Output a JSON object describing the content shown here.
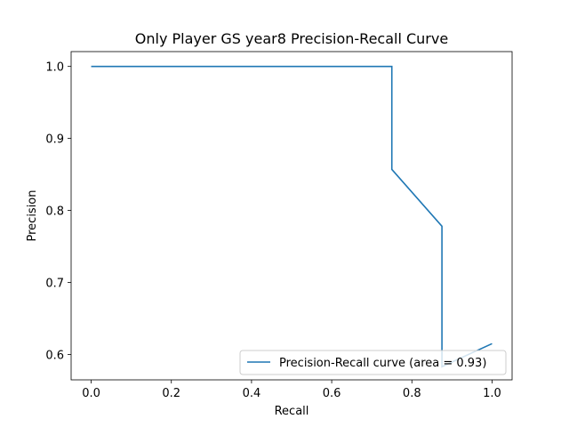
{
  "chart_data": {
    "type": "line",
    "title": "Only Player GS year8 Precision-Recall Curve",
    "xlabel": "Recall",
    "ylabel": "Precision",
    "xlim": [
      -0.05,
      1.05
    ],
    "ylim": [
      0.5647,
      1.0206
    ],
    "xticks": [
      0.0,
      0.2,
      0.4,
      0.6,
      0.8,
      1.0
    ],
    "xtick_labels": [
      "0.0",
      "0.2",
      "0.4",
      "0.6",
      "0.8",
      "1.0"
    ],
    "yticks": [
      0.6,
      0.7,
      0.8,
      0.9,
      1.0
    ],
    "ytick_labels": [
      "0.6",
      "0.7",
      "0.8",
      "0.9",
      "1.0"
    ],
    "grid": false,
    "legend_position": "lower right",
    "series": [
      {
        "name": "Precision-Recall curve (area = 0.93)",
        "color": "#1f77b4",
        "x": [
          0.0,
          0.75,
          0.75,
          0.875,
          0.875,
          1.0
        ],
        "y": [
          1.0,
          1.0,
          0.857,
          0.778,
          0.583,
          0.615
        ]
      }
    ]
  }
}
